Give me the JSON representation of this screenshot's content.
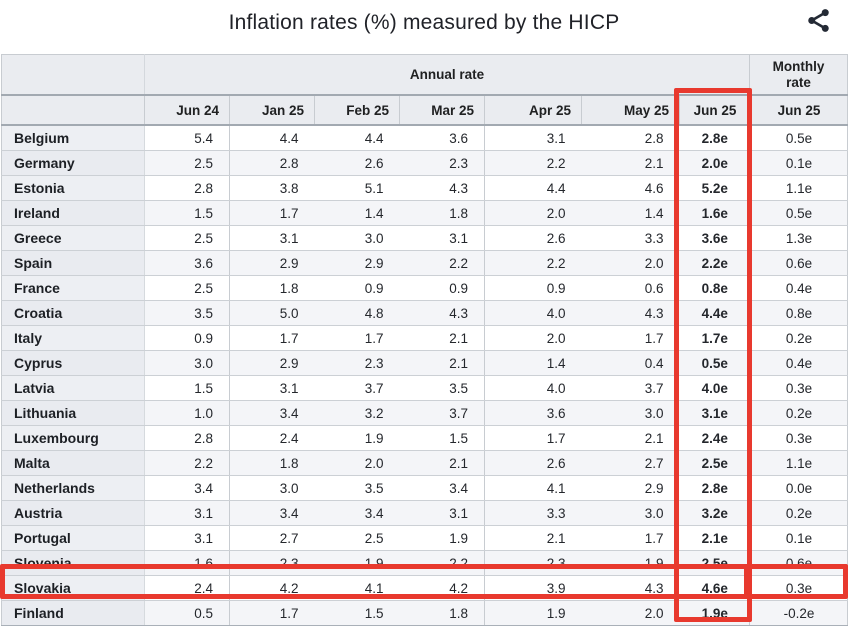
{
  "header": {
    "title": "Inflation rates (%) measured by the HICP"
  },
  "icons": {
    "share": "share-icon"
  },
  "colors": {
    "highlight_red": "#e8392e",
    "header_bg": "#eaecf0",
    "border_dark": "#a2a9b1",
    "border_light": "#c8ccd1",
    "row_stripe": "#f4f5f8"
  },
  "chart_data": {
    "type": "table",
    "title": "Inflation rates (%) measured by the HICP",
    "column_groups": [
      "Annual rate",
      "Monthly rate"
    ],
    "columns": [
      "Jun 24",
      "Jan 25",
      "Feb 25",
      "Mar 25",
      "Apr 25",
      "May 25",
      "Jun 25",
      "Jun 25"
    ],
    "rows": [
      {
        "country": "Belgium",
        "values": [
          "5.4",
          "4.4",
          "4.4",
          "3.6",
          "3.1",
          "2.8",
          "2.8e",
          "0.5e"
        ]
      },
      {
        "country": "Germany",
        "values": [
          "2.5",
          "2.8",
          "2.6",
          "2.3",
          "2.2",
          "2.1",
          "2.0e",
          "0.1e"
        ]
      },
      {
        "country": "Estonia",
        "values": [
          "2.8",
          "3.8",
          "5.1",
          "4.3",
          "4.4",
          "4.6",
          "5.2e",
          "1.1e"
        ]
      },
      {
        "country": "Ireland",
        "values": [
          "1.5",
          "1.7",
          "1.4",
          "1.8",
          "2.0",
          "1.4",
          "1.6e",
          "0.5e"
        ]
      },
      {
        "country": "Greece",
        "values": [
          "2.5",
          "3.1",
          "3.0",
          "3.1",
          "2.6",
          "3.3",
          "3.6e",
          "1.3e"
        ]
      },
      {
        "country": "Spain",
        "values": [
          "3.6",
          "2.9",
          "2.9",
          "2.2",
          "2.2",
          "2.0",
          "2.2e",
          "0.6e"
        ]
      },
      {
        "country": "France",
        "values": [
          "2.5",
          "1.8",
          "0.9",
          "0.9",
          "0.9",
          "0.6",
          "0.8e",
          "0.4e"
        ]
      },
      {
        "country": "Croatia",
        "values": [
          "3.5",
          "5.0",
          "4.8",
          "4.3",
          "4.0",
          "4.3",
          "4.4e",
          "0.8e"
        ]
      },
      {
        "country": "Italy",
        "values": [
          "0.9",
          "1.7",
          "1.7",
          "2.1",
          "2.0",
          "1.7",
          "1.7e",
          "0.2e"
        ]
      },
      {
        "country": "Cyprus",
        "values": [
          "3.0",
          "2.9",
          "2.3",
          "2.1",
          "1.4",
          "0.4",
          "0.5e",
          "0.4e"
        ]
      },
      {
        "country": "Latvia",
        "values": [
          "1.5",
          "3.1",
          "3.7",
          "3.5",
          "4.0",
          "3.7",
          "4.0e",
          "0.3e"
        ]
      },
      {
        "country": "Lithuania",
        "values": [
          "1.0",
          "3.4",
          "3.2",
          "3.7",
          "3.6",
          "3.0",
          "3.1e",
          "0.2e"
        ]
      },
      {
        "country": "Luxembourg",
        "values": [
          "2.8",
          "2.4",
          "1.9",
          "1.5",
          "1.7",
          "2.1",
          "2.4e",
          "0.3e"
        ]
      },
      {
        "country": "Malta",
        "values": [
          "2.2",
          "1.8",
          "2.0",
          "2.1",
          "2.6",
          "2.7",
          "2.5e",
          "1.1e"
        ]
      },
      {
        "country": "Netherlands",
        "values": [
          "3.4",
          "3.0",
          "3.5",
          "3.4",
          "4.1",
          "2.9",
          "2.8e",
          "0.0e"
        ]
      },
      {
        "country": "Austria",
        "values": [
          "3.1",
          "3.4",
          "3.4",
          "3.1",
          "3.3",
          "3.0",
          "3.2e",
          "0.2e"
        ]
      },
      {
        "country": "Portugal",
        "values": [
          "3.1",
          "2.7",
          "2.5",
          "1.9",
          "2.1",
          "1.7",
          "2.1e",
          "0.1e"
        ]
      },
      {
        "country": "Slovenia",
        "values": [
          "1.6",
          "2.3",
          "1.9",
          "2.2",
          "2.3",
          "1.9",
          "2.5e",
          "0.6e"
        ]
      },
      {
        "country": "Slovakia",
        "values": [
          "2.4",
          "4.2",
          "4.1",
          "4.2",
          "3.9",
          "4.3",
          "4.6e",
          "0.3e"
        ]
      },
      {
        "country": "Finland",
        "values": [
          "0.5",
          "1.7",
          "1.5",
          "1.8",
          "1.9",
          "2.0",
          "1.9e",
          "-0.2e"
        ]
      }
    ],
    "highlights": {
      "color": "#e8392e",
      "column": "Jun 25 (annual rate)",
      "row": "Slovakia",
      "cell": "Slovakia Jun 25 monthly rate"
    }
  }
}
